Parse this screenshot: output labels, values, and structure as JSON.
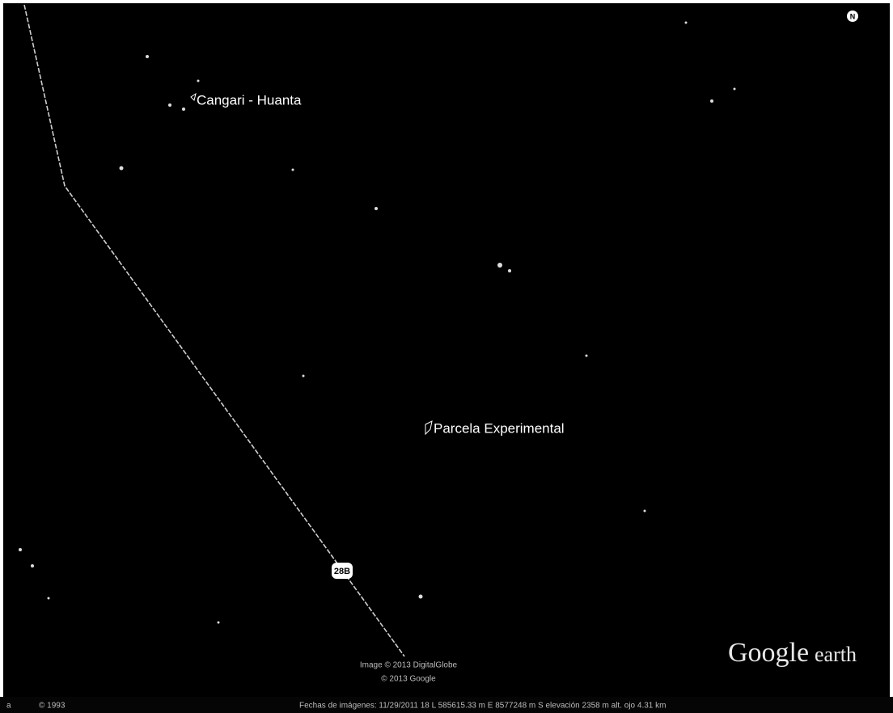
{
  "map": {
    "compass": "N",
    "placemarks": [
      {
        "label": "Cangari - Huanta"
      },
      {
        "label": "Parcela Experimental"
      }
    ],
    "road_shield": "28B",
    "attribution": [
      "Image © 2013 DigitalGlobe",
      "© 2013 Google"
    ],
    "logo": {
      "google": "Google",
      "earth": "earth"
    }
  },
  "status_bar": {
    "left": "a",
    "year": "© 1993",
    "info": "Fechas de imágenes: 11/29/2011   18 L 585615.33 m E  8577248 m S  elevación 2358 m   alt. ojo 4.31 km"
  }
}
